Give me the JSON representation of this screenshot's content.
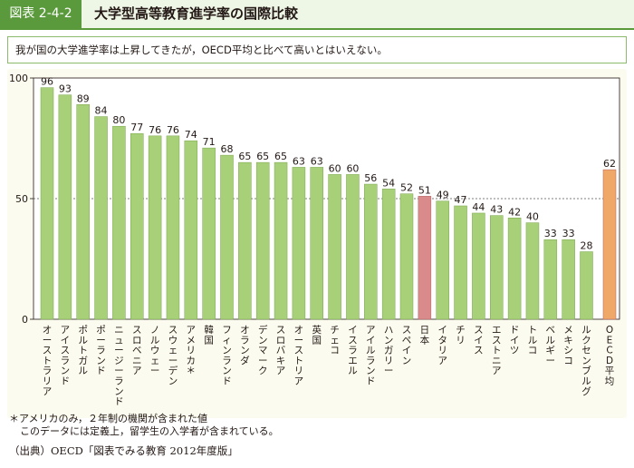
{
  "header": {
    "tag": "図表 2-4-2",
    "title": "大学型高等教育進学率の国際比較"
  },
  "summary": "我が国の大学進学率は上昇してきたが，OECD平均と比べて高いとはいえない。",
  "footnote": {
    "line1": "＊アメリカのみ，２年制の機関が含まれた値",
    "line2": "このデータには定義上，留学生の入学者が含まれている。"
  },
  "source": "（出典）OECD「図表でみる教育 2012年度版」",
  "colors": {
    "bar": "#a8d078",
    "bar_stroke": "#7aa64e",
    "japan": "#d98b8b",
    "oecd": "#f0a868",
    "header": "#5a9a3c"
  },
  "chart_data": {
    "type": "bar",
    "categories": [
      "オーストラリア",
      "アイスランド",
      "ポルトガル",
      "ポーランド",
      "ニュージーランド",
      "スロベニア",
      "ノルウェー",
      "スウェーデン",
      "アメリカ＊",
      "韓国",
      "フィンランド",
      "オランダ",
      "デンマーク",
      "スロバキア",
      "オーストリア",
      "英国",
      "チェコ",
      "イスラエル",
      "アイルランド",
      "ハンガリー",
      "スペイン",
      "日本",
      "イタリア",
      "チリ",
      "スイス",
      "エストニア",
      "ドイツ",
      "トルコ",
      "ベルギー",
      "メキシコ",
      "ルクセンブルグ",
      "OECD平均"
    ],
    "values": [
      96,
      93,
      89,
      84,
      80,
      77,
      76,
      76,
      74,
      71,
      68,
      65,
      65,
      65,
      63,
      63,
      60,
      60,
      56,
      54,
      52,
      51,
      49,
      47,
      44,
      43,
      42,
      40,
      33,
      33,
      28,
      62
    ],
    "highlight": {
      "日本": "japan",
      "OECD平均": "oecd"
    },
    "ylim": [
      0,
      100
    ],
    "yticks": [
      0,
      50,
      100
    ],
    "reference_line": 50,
    "title": "",
    "xlabel": "",
    "ylabel": ""
  }
}
